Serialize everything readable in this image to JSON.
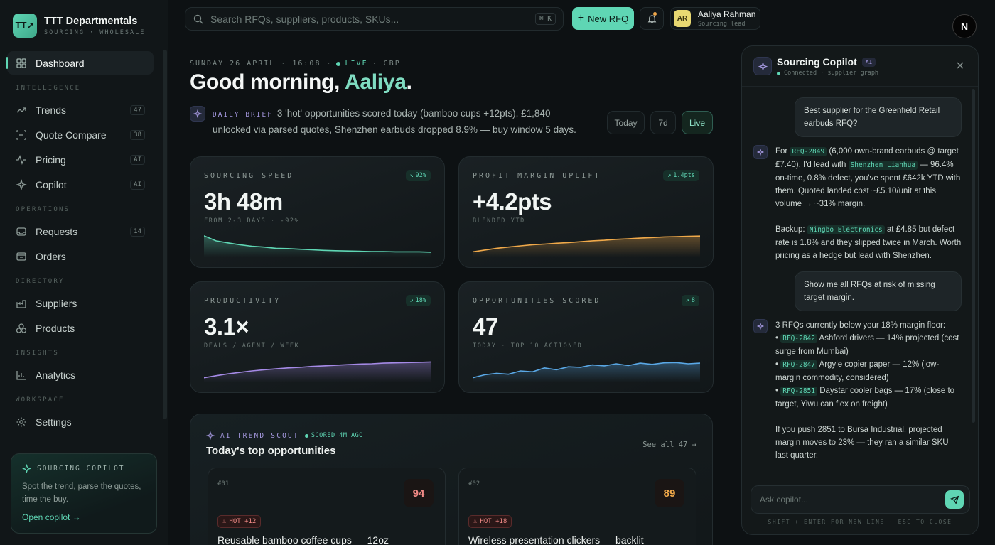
{
  "brand": {
    "logo": "TT↗",
    "name": "TTT Departmentals",
    "sub": "SOURCING · WHOLESALE"
  },
  "nav": {
    "dashboard": {
      "label": "Dashboard",
      "icon": "grid-icon"
    },
    "sections": {
      "intelligence": "INTELLIGENCE",
      "operations": "OPERATIONS",
      "directory": "DIRECTORY",
      "insights": "INSIGHTS",
      "workspace": "WORKSPACE"
    },
    "trends": {
      "label": "Trends",
      "badge": "47"
    },
    "quote_compare": {
      "label": "Quote Compare",
      "badge": "38"
    },
    "pricing": {
      "label": "Pricing",
      "badge": "AI"
    },
    "copilot": {
      "label": "Copilot",
      "badge": "AI"
    },
    "requests": {
      "label": "Requests",
      "badge": "14"
    },
    "orders": {
      "label": "Orders"
    },
    "suppliers": {
      "label": "Suppliers"
    },
    "products": {
      "label": "Products"
    },
    "analytics": {
      "label": "Analytics"
    },
    "settings": {
      "label": "Settings"
    }
  },
  "promo": {
    "title": "SOURCING COPILOT",
    "text": "Spot the trend, parse the quotes, time the buy.",
    "link": "Open copilot →"
  },
  "topbar": {
    "search_placeholder": "Search RFQs, suppliers, products, SKUs...",
    "shortcut": "⌘ K",
    "new_rfq": "New RFQ",
    "user_initials": "AR",
    "user_name": "Aaliya Rahman",
    "user_role": "Sourcing lead",
    "corner_logo": "N"
  },
  "header": {
    "date": "SUNDAY 26 APRIL · 16:08 ·",
    "live": "LIVE",
    "currency": "· GBP",
    "greeting_prefix": "Good morning, ",
    "greeting_name": "Aaliya",
    "greeting_suffix": ".",
    "brief_tag": "DAILY BRIEF",
    "brief_text": "3 'hot' opportunities scored today (bamboo cups +12pts), £1,840 unlocked via parsed quotes, Shenzhen earbuds dropped 8.9% — buy window 5 days.",
    "ranges": [
      "Today",
      "7d",
      "Live"
    ],
    "active_range": "Live"
  },
  "metrics": {
    "speed": {
      "label": "SOURCING SPEED",
      "badge": "92%",
      "value": "3h 48m",
      "sub": "FROM 2-3 DAYS · -92%",
      "color": "#5fd6b4",
      "trend": [
        0.72,
        0.55,
        0.48,
        0.42,
        0.37,
        0.34,
        0.3,
        0.29,
        0.27,
        0.25,
        0.23,
        0.22,
        0.21,
        0.2,
        0.19,
        0.19,
        0.18,
        0.18,
        0.18,
        0.17
      ]
    },
    "margin": {
      "label": "PROFIT MARGIN UPLIFT",
      "badge": "1.4pts",
      "value": "+4.2pts",
      "sub": "BLENDED YTD",
      "color": "#f0a94a",
      "trend": [
        0.18,
        0.24,
        0.3,
        0.34,
        0.38,
        0.42,
        0.44,
        0.47,
        0.49,
        0.52,
        0.55,
        0.57,
        0.6,
        0.62,
        0.64,
        0.66,
        0.68,
        0.69,
        0.7,
        0.71
      ]
    },
    "productivity": {
      "label": "PRODUCTIVITY",
      "badge": "18%",
      "value": "3.1×",
      "sub": "DEALS / AGENT / WEEK",
      "color": "#a58ae6",
      "trend": [
        0.15,
        0.22,
        0.28,
        0.33,
        0.38,
        0.42,
        0.45,
        0.48,
        0.5,
        0.53,
        0.55,
        0.57,
        0.59,
        0.61,
        0.62,
        0.64,
        0.65,
        0.66,
        0.67,
        0.68
      ]
    },
    "opportunities": {
      "label": "OPPORTUNITIES SCORED",
      "badge": "8",
      "value": "47",
      "sub": "TODAY · TOP 10 ACTIONED",
      "color": "#5aa8e6",
      "trend": [
        0.15,
        0.25,
        0.3,
        0.27,
        0.38,
        0.35,
        0.48,
        0.42,
        0.52,
        0.5,
        0.58,
        0.55,
        0.62,
        0.56,
        0.64,
        0.6,
        0.65,
        0.66,
        0.62,
        0.64
      ]
    }
  },
  "opportunities": {
    "tag": "AI TREND SCOUT",
    "scored": "SCORED 4M AGO",
    "title": "Today's top opportunities",
    "see_all": "See all 47 →",
    "items": [
      {
        "rank": "#01",
        "score": "94",
        "tag": "HOT +12",
        "title": "Reusable bamboo coffee cups — 12oz",
        "score_color": "#f08a86"
      },
      {
        "rank": "#02",
        "score": "89",
        "tag": "HOT +18",
        "title": "Wireless presentation clickers — backlit",
        "score_color": "#f0a94a"
      }
    ]
  },
  "copilot": {
    "title": "Sourcing Copilot",
    "ai": "AI",
    "status": "Connected · supplier graph",
    "q1": "Best supplier for the Greenfield Retail earbuds RFQ?",
    "a1": {
      "t1": "For ",
      "c1": "RFQ-2849",
      "t2": " (6,000 own-brand earbuds @ target £7.40), I'd lead with ",
      "c2": "Shenzhen Lianhua",
      "t3": " — 96.4% on-time, 0.8% defect, you've spent £642k YTD with them. Quoted landed cost ~£5.10/unit at this volume → ~31% margin.",
      "t4": "Backup: ",
      "c3": "Ningbo Electronics",
      "t5": " at £4.85 but defect rate is 1.8% and they slipped twice in March. Worth pricing as a hedge but lead with Shenzhen."
    },
    "q2": "Show me all RFQs at risk of missing target margin.",
    "a2": {
      "intro": "3 RFQs currently below your 18% margin floor:",
      "items": [
        {
          "code": "RFQ-2842",
          "text": " Ashford drivers — 14% projected (cost surge from Mumbai)"
        },
        {
          "code": "RFQ-2847",
          "text": " Argyle copier paper — 12% (low-margin commodity, considered)"
        },
        {
          "code": "RFQ-2851",
          "text": " Daystar cooler bags — 17% (close to target, Yiwu can flex on freight)"
        }
      ],
      "outro": "If you push 2851 to Bursa Industrial, projected margin moves to 23% — they ran a similar SKU last quarter."
    },
    "input_placeholder": "Ask copilot...",
    "hint": "SHIFT + ENTER FOR NEW LINE · ESC TO CLOSE"
  }
}
